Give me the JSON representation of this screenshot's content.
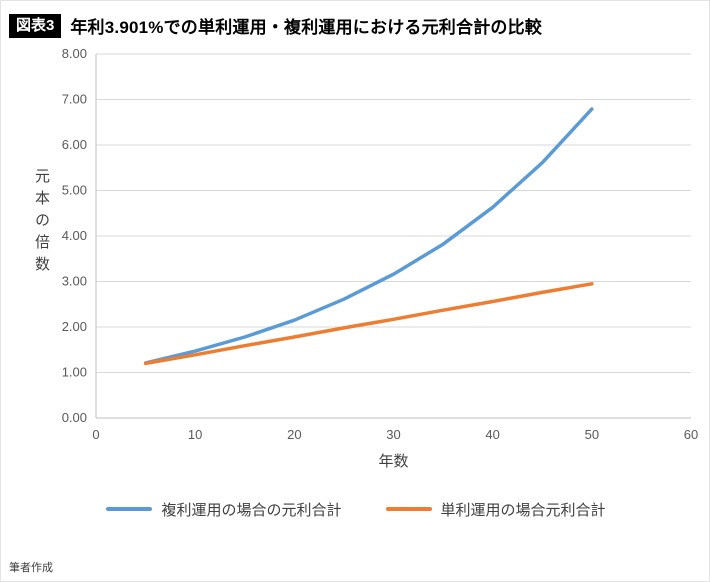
{
  "page": {
    "badge": "図表3",
    "footer": "筆者作成"
  },
  "chart_data": {
    "type": "line",
    "title": "年利3.901%での単利運用・複利運用における元利合計の比較",
    "xlabel": "年数",
    "ylabel": "元本の倍数",
    "xlim": [
      0,
      60
    ],
    "ylim": [
      0,
      8
    ],
    "xticks": [
      0,
      10,
      20,
      30,
      40,
      50,
      60
    ],
    "yticks": [
      "0.00",
      "1.00",
      "2.00",
      "3.00",
      "4.00",
      "5.00",
      "6.00",
      "7.00",
      "8.00"
    ],
    "grid": true,
    "legend_position": "bottom",
    "x": [
      5,
      10,
      15,
      20,
      25,
      30,
      35,
      40,
      45,
      50
    ],
    "series": [
      {
        "name": "複利運用の場合の元利合計",
        "color": "#5B9BD5",
        "values": [
          1.21,
          1.47,
          1.78,
          2.15,
          2.61,
          3.16,
          3.82,
          4.63,
          5.61,
          6.79
        ]
      },
      {
        "name": "単利運用の場合元利合計",
        "color": "#ED7D31",
        "values": [
          1.2,
          1.39,
          1.59,
          1.78,
          1.98,
          2.17,
          2.37,
          2.56,
          2.76,
          2.95
        ]
      }
    ]
  }
}
